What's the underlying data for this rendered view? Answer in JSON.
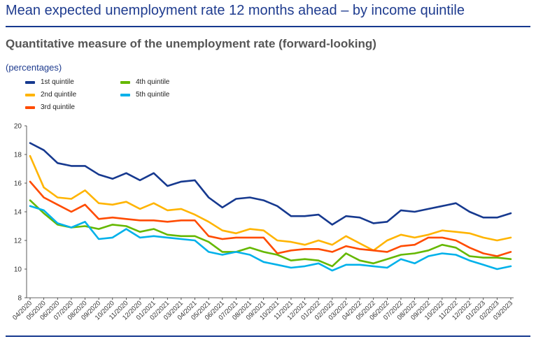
{
  "header": {
    "title": "Mean expected unemployment rate 12 months ahead – by income quintile",
    "subtitle": "Quantitative measure of the unemployment rate (forward-looking)",
    "unit": "(percentages)"
  },
  "chart_data": {
    "type": "line",
    "title": "Mean expected unemployment rate 12 months ahead – by income quintile",
    "subtitle": "Quantitative measure of the unemployment rate (forward-looking)",
    "ylabel": "(percentages)",
    "xlabel": "",
    "ylim": [
      8,
      20
    ],
    "yticks": [
      8,
      10,
      12,
      14,
      16,
      18,
      20
    ],
    "grid": false,
    "legend_position": "top-left",
    "categories": [
      "04/2020",
      "05/2020",
      "06/2020",
      "07/2020",
      "08/2020",
      "09/2020",
      "10/2020",
      "11/2020",
      "12/2020",
      "01/2021",
      "02/2021",
      "03/2021",
      "04/2021",
      "05/2021",
      "06/2021",
      "07/2021",
      "08/2021",
      "09/2021",
      "10/2021",
      "11/2021",
      "12/2021",
      "01/2022",
      "02/2022",
      "03/2022",
      "04/2022",
      "05/2022",
      "06/2022",
      "07/2022",
      "08/2022",
      "09/2022",
      "10/2022",
      "11/2022",
      "12/2022",
      "01/2023",
      "02/2023",
      "03/2023"
    ],
    "x_tick_labels": [
      "04/2020",
      "05/2020",
      "06/2020",
      "07/2020",
      "08/2020",
      "09/2020",
      "10/2020",
      "11/2020",
      "12/2020",
      "01/2021",
      "02/2021",
      "03/2021",
      "04/2021",
      "05/2021",
      "06/2021",
      "07/2021",
      "08/2021",
      "09/2021",
      "10/2021",
      "11/2021",
      "12/2021",
      "01/2022",
      "02/2022",
      "03/2022",
      "04/2022",
      "05/2022",
      "06/2022",
      "07/2022",
      "08/2022",
      "09/2022",
      "10/2022",
      "11/2022",
      "12/2022",
      "01/2023",
      "02/2023",
      "03/2023"
    ],
    "series": [
      {
        "name": "1st quintile",
        "color": "#16398f",
        "values": [
          18.8,
          18.3,
          17.4,
          17.2,
          17.2,
          16.6,
          16.3,
          16.7,
          16.2,
          16.7,
          15.8,
          16.1,
          16.2,
          15.0,
          14.3,
          14.9,
          15.0,
          14.8,
          14.4,
          13.7,
          13.7,
          13.8,
          13.1,
          13.7,
          13.6,
          13.2,
          13.3,
          14.1,
          14.0,
          14.2,
          14.4,
          14.6,
          14.0,
          13.6,
          13.6,
          13.9
        ]
      },
      {
        "name": "2nd quintile",
        "color": "#ffb400",
        "values": [
          17.9,
          15.7,
          15.0,
          14.9,
          15.5,
          14.6,
          14.5,
          14.7,
          14.2,
          14.6,
          14.1,
          14.2,
          13.8,
          13.3,
          12.7,
          12.5,
          12.8,
          12.7,
          12.0,
          11.9,
          11.7,
          12.0,
          11.7,
          12.3,
          11.8,
          11.3,
          12.0,
          12.4,
          12.2,
          12.4,
          12.7,
          12.6,
          12.5,
          12.2,
          12.0,
          12.2
        ]
      },
      {
        "name": "3rd quintile",
        "color": "#ff4b00",
        "values": [
          16.1,
          15.0,
          14.5,
          14.0,
          14.5,
          13.5,
          13.6,
          13.5,
          13.4,
          13.4,
          13.3,
          13.4,
          13.4,
          12.3,
          12.1,
          12.2,
          12.2,
          12.2,
          11.1,
          11.3,
          11.4,
          11.4,
          11.2,
          11.6,
          11.4,
          11.3,
          11.2,
          11.6,
          11.7,
          12.2,
          12.2,
          12.0,
          11.5,
          11.1,
          10.9,
          11.2
        ]
      },
      {
        "name": "4th quintile",
        "color": "#65b800",
        "values": [
          14.8,
          13.9,
          13.1,
          12.9,
          13.0,
          12.8,
          13.1,
          13.0,
          12.6,
          12.8,
          12.4,
          12.3,
          12.3,
          11.9,
          11.2,
          11.2,
          11.5,
          11.2,
          11.0,
          10.6,
          10.7,
          10.6,
          10.2,
          11.1,
          10.6,
          10.4,
          10.7,
          11.0,
          11.1,
          11.3,
          11.7,
          11.5,
          10.9,
          10.8,
          10.8,
          10.7
        ]
      },
      {
        "name": "5th quintile",
        "color": "#00b1ea",
        "values": [
          14.4,
          14.1,
          13.2,
          12.9,
          13.3,
          12.1,
          12.2,
          12.8,
          12.2,
          12.3,
          12.2,
          12.1,
          12.0,
          11.2,
          11.0,
          11.2,
          11.0,
          10.5,
          10.3,
          10.1,
          10.2,
          10.4,
          9.9,
          10.3,
          10.3,
          10.2,
          10.1,
          10.7,
          10.4,
          10.9,
          11.1,
          11.0,
          10.6,
          10.3,
          10.0,
          10.2
        ]
      }
    ]
  }
}
